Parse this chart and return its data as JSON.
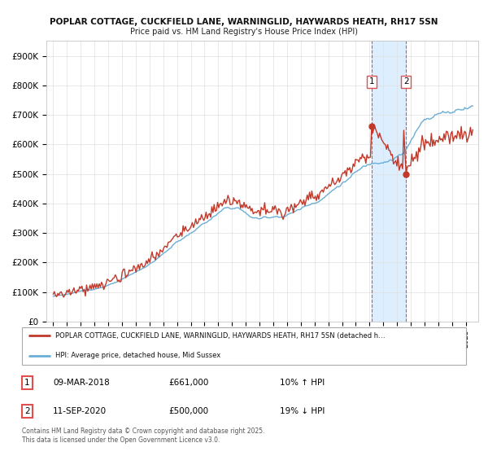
{
  "title1": "POPLAR COTTAGE, CUCKFIELD LANE, WARNINGLID, HAYWARDS HEATH, RH17 5SN",
  "title2": "Price paid vs. HM Land Registry's House Price Index (HPI)",
  "ylim": [
    0,
    950000
  ],
  "yticks": [
    0,
    100000,
    200000,
    300000,
    400000,
    500000,
    600000,
    700000,
    800000,
    900000
  ],
  "ytick_labels": [
    "£0",
    "£100K",
    "£200K",
    "£300K",
    "£400K",
    "£500K",
    "£600K",
    "£700K",
    "£800K",
    "£900K"
  ],
  "hpi_color": "#6baed6",
  "price_color": "#c0392b",
  "vline_color": "#e05050",
  "shade_color": "#ddeeff",
  "transaction1": {
    "date": "09-MAR-2018",
    "price": 661000,
    "hpi_diff": "10% ↑ HPI"
  },
  "transaction2": {
    "date": "11-SEP-2020",
    "price": 500000,
    "hpi_diff": "19% ↓ HPI"
  },
  "legend_line1": "POPLAR COTTAGE, CUCKFIELD LANE, WARNINGLID, HAYWARDS HEATH, RH17 5SN (detached h…",
  "legend_line2": "HPI: Average price, detached house, Mid Sussex",
  "footer": "Contains HM Land Registry data © Crown copyright and database right 2025.\nThis data is licensed under the Open Government Licence v3.0.",
  "background_color": "#ffffff",
  "grid_color": "#e0e0e0",
  "year_start": 1995,
  "year_end": 2025
}
